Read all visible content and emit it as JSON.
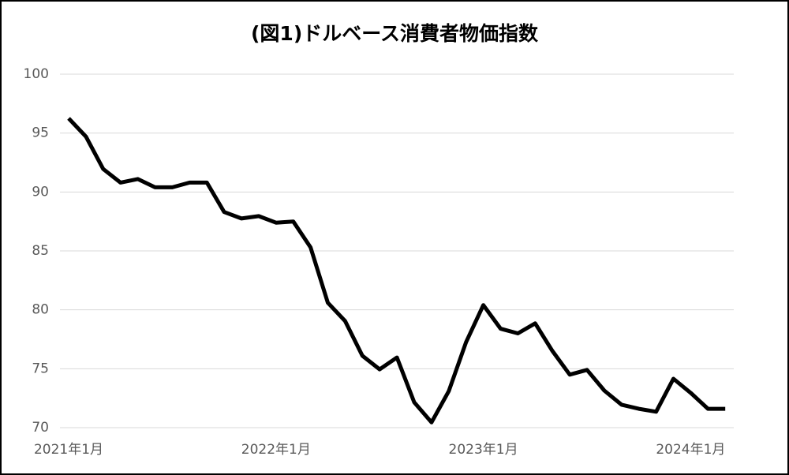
{
  "chart_data": {
    "type": "line",
    "title": "(図1)ドルベース消費者物価指数",
    "categories": [
      "2021年1月",
      null,
      null,
      null,
      null,
      null,
      null,
      null,
      null,
      null,
      null,
      null,
      "2022年1月",
      null,
      null,
      null,
      null,
      null,
      null,
      null,
      null,
      null,
      null,
      null,
      "2023年1月",
      null,
      null,
      null,
      null,
      null,
      null,
      null,
      null,
      null,
      null,
      null,
      "2024年1月",
      null,
      null
    ],
    "values": [
      96.25,
      94.7,
      91.95,
      90.8,
      91.1,
      90.4,
      90.4,
      90.8,
      90.8,
      88.3,
      87.75,
      87.95,
      87.4,
      87.5,
      85.3,
      80.6,
      79.05,
      76.1,
      74.95,
      75.95,
      72.15,
      70.45,
      73.1,
      77.25,
      80.4,
      78.4,
      78.0,
      78.85,
      76.5,
      74.5,
      74.9,
      73.15,
      71.95,
      71.6,
      71.35,
      74.15,
      72.95,
      71.6,
      71.6
    ],
    "color": "#000000",
    "ylim": [
      70,
      100
    ],
    "yticks": [
      70,
      75,
      80,
      85,
      90,
      95,
      100
    ],
    "grid": true
  }
}
